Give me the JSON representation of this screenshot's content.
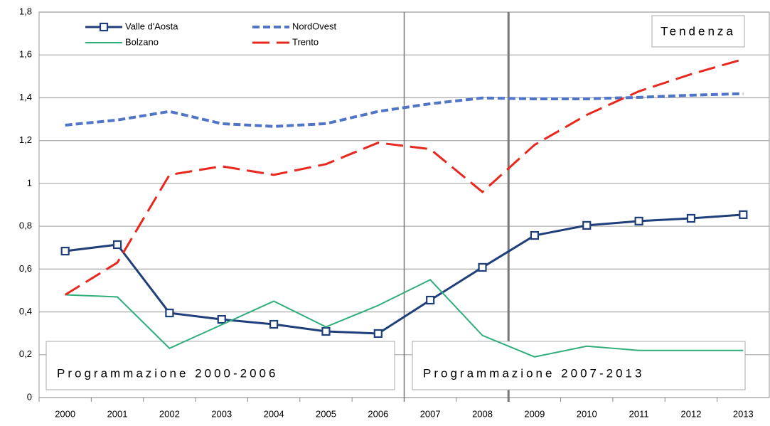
{
  "chart_data": {
    "type": "line",
    "categories": [
      "2000",
      "2001",
      "2002",
      "2003",
      "2004",
      "2005",
      "2006",
      "2007",
      "2008",
      "2009",
      "2010",
      "2011",
      "2012",
      "2013"
    ],
    "series": [
      {
        "name": "Valle d'Aosta",
        "color": "#1f3f7a",
        "dash": "solid",
        "marker": "square",
        "values": [
          0.684,
          0.714,
          0.395,
          0.365,
          0.342,
          0.309,
          0.299,
          0.455,
          0.608,
          0.757,
          0.804,
          0.824,
          0.837,
          0.854
        ]
      },
      {
        "name": "NordOvest",
        "color": "#4f74c8",
        "dash": "short",
        "marker": "none",
        "values": [
          1.272,
          1.296,
          1.336,
          1.279,
          1.266,
          1.279,
          1.336,
          1.372,
          1.399,
          1.395,
          1.395,
          1.402,
          1.412,
          1.419
        ]
      },
      {
        "name": "Bolzano",
        "color": "#2fae7a",
        "dash": "solid",
        "marker": "none",
        "values": [
          0.48,
          0.47,
          0.23,
          0.34,
          0.45,
          0.33,
          0.43,
          0.55,
          0.29,
          0.19,
          0.24,
          0.22,
          0.22,
          0.22
        ]
      },
      {
        "name": "Trento",
        "color": "#e8281e",
        "dash": "long",
        "marker": "none",
        "values": [
          0.48,
          0.63,
          1.04,
          1.08,
          1.04,
          1.09,
          1.19,
          1.16,
          0.96,
          1.18,
          1.32,
          1.43,
          1.51,
          1.58
        ]
      }
    ],
    "ylim": [
      0,
      1.8
    ],
    "yticks": [
      0,
      {
        "value": 0.2,
        "label": "0,2"
      },
      {
        "value": 0.4,
        "label": "0,4"
      },
      {
        "value": 0.6,
        "label": "0,6"
      },
      {
        "value": 0.8,
        "label": "0,8"
      },
      1,
      {
        "value": 1.2,
        "label": "1,2"
      },
      {
        "value": 1.4,
        "label": "1,4"
      },
      {
        "value": 1.6,
        "label": "1,6"
      },
      {
        "value": 1.8,
        "label": "1,8"
      }
    ],
    "grid": true,
    "annotations": [
      "Tendenza",
      "Programmazione 2000-2006",
      "Programmazione 2007-2013"
    ]
  }
}
